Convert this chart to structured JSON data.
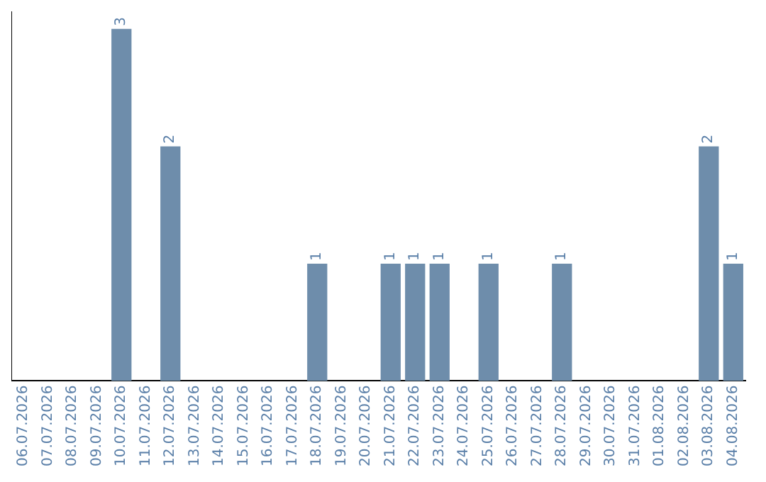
{
  "chart_data": {
    "type": "bar",
    "categories": [
      "06.07.2026",
      "07.07.2026",
      "08.07.2026",
      "09.07.2026",
      "10.07.2026",
      "11.07.2026",
      "12.07.2026",
      "13.07.2026",
      "14.07.2026",
      "15.07.2026",
      "16.07.2026",
      "17.07.2026",
      "18.07.2026",
      "19.07.2026",
      "20.07.2026",
      "21.07.2026",
      "22.07.2026",
      "23.07.2026",
      "24.07.2026",
      "25.07.2026",
      "26.07.2026",
      "27.07.2026",
      "28.07.2026",
      "29.07.2026",
      "30.07.2026",
      "31.07.2026",
      "01.08.2026",
      "02.08.2026",
      "03.08.2026",
      "04.08.2026"
    ],
    "values": [
      0,
      0,
      0,
      0,
      3,
      0,
      2,
      0,
      0,
      0,
      0,
      0,
      1,
      0,
      0,
      1,
      1,
      1,
      0,
      1,
      0,
      0,
      1,
      0,
      0,
      0,
      0,
      0,
      2,
      1
    ],
    "value_labels": [
      null,
      null,
      null,
      null,
      "3",
      null,
      "2",
      null,
      null,
      null,
      null,
      null,
      "1",
      null,
      null,
      "1",
      "1",
      "1",
      null,
      "1",
      null,
      null,
      "1",
      null,
      null,
      null,
      null,
      null,
      "2",
      "1"
    ],
    "color": "#6e8dab",
    "ylim": [
      0,
      3.15
    ],
    "tick_labels": "x",
    "grid": false,
    "legend": false
  }
}
